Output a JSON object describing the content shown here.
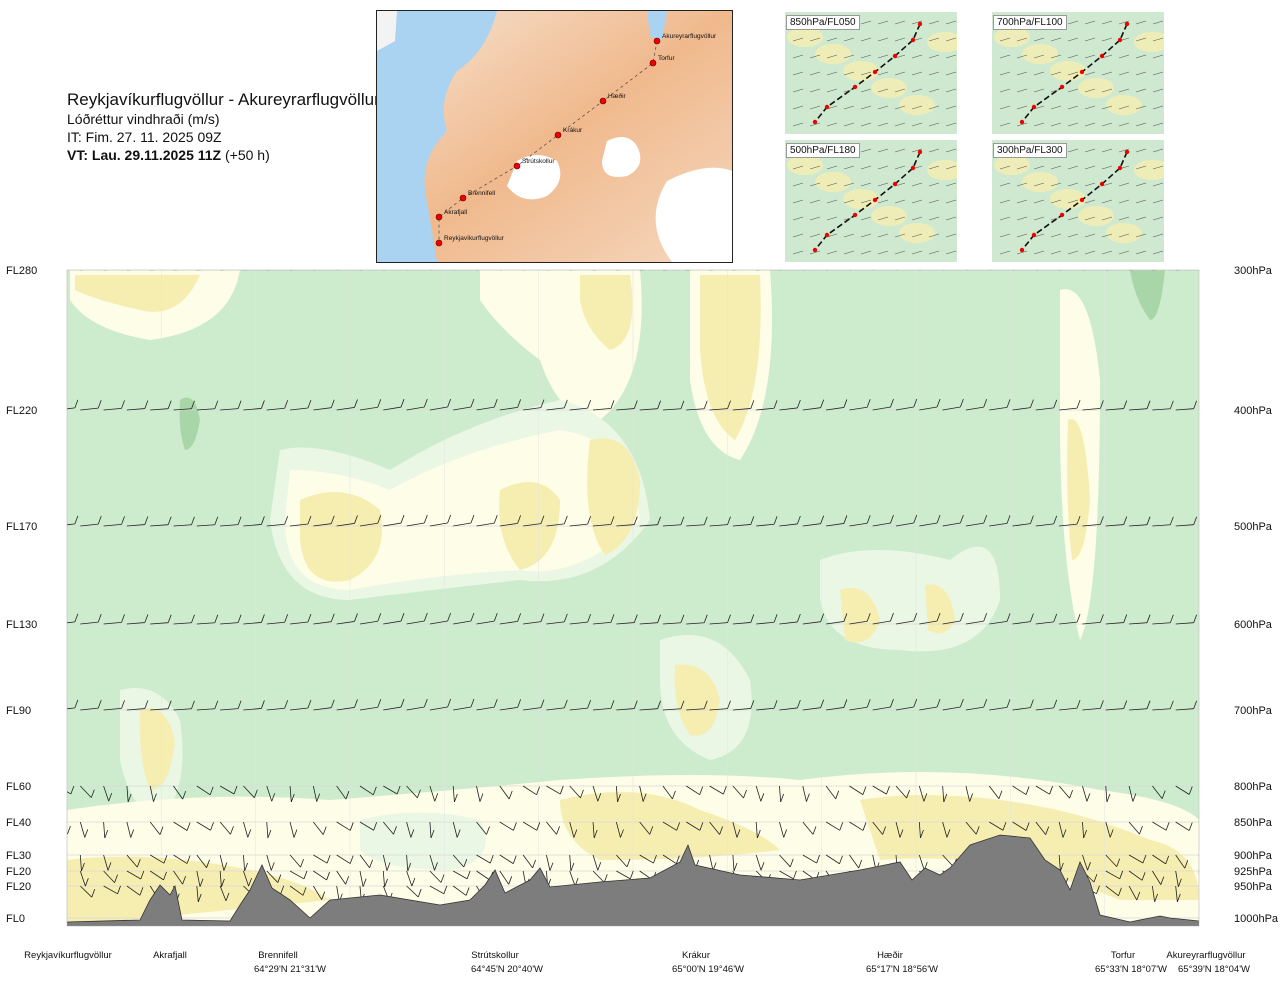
{
  "header": {
    "route": "Reykjavíkurflugvöllur - Akureyrarflugvöllur",
    "variable": "Lóðréttur vindhraði (m/s)",
    "issue_time": "IT: Fim. 27. 11. 2025 09Z",
    "valid_time_bold": "VT: Lau. 29.11.2025 11Z",
    "valid_time_offset": "(+50 h)"
  },
  "route_map": {
    "points": [
      {
        "name": "Akureyrarflugvöllur"
      },
      {
        "name": "Torfur"
      },
      {
        "name": "Hæðir"
      },
      {
        "name": "Krákur"
      },
      {
        "name": "Strútskollur"
      },
      {
        "name": "Brennifell"
      },
      {
        "name": "Akrafjall"
      },
      {
        "name": "Reykjavíkurflugvöllur"
      }
    ]
  },
  "level_maps": [
    {
      "label": "850hPa/FL050"
    },
    {
      "label": "700hPa/FL100"
    },
    {
      "label": "500hPa/FL180"
    },
    {
      "label": "300hPa/FL300"
    }
  ],
  "chart_data": {
    "type": "heatmap",
    "title": "Reykjavíkurflugvöllur - Akureyrarflugvöllur",
    "subtitle": "Lóðréttur vindhraði (m/s)",
    "flight_levels": [
      "FL280",
      "FL220",
      "FL170",
      "FL130",
      "FL90",
      "FL60",
      "FL40",
      "FL30",
      "FL20",
      "FL20",
      "FL0"
    ],
    "pressure_levels": [
      "300hPa",
      "400hPa",
      "500hPa",
      "600hPa",
      "700hPa",
      "800hPa",
      "850hPa",
      "900hPa",
      "925hPa",
      "950hPa",
      "1000hPa"
    ],
    "pressure_values_hpa": [
      300,
      400,
      500,
      600,
      700,
      800,
      850,
      900,
      925,
      950,
      1000
    ],
    "stations": [
      {
        "name": "Reykjavíkurflugvöllur",
        "coord": "",
        "fraction": 0.0
      },
      {
        "name": "Akrafjall",
        "coord": "",
        "fraction": 0.09
      },
      {
        "name": "Brennifell",
        "coord": "64°29'N 21°31'W",
        "fraction": 0.19
      },
      {
        "name": "Strútskollur",
        "coord": "64°45'N 20°40'W",
        "fraction": 0.375
      },
      {
        "name": "Krákur",
        "coord": "65°00'N 19°46'W",
        "fraction": 0.555
      },
      {
        "name": "Hæðir",
        "coord": "65°17'N 18°56'W",
        "fraction": 0.735
      },
      {
        "name": "Torfur",
        "coord": "65°33'N 18°07'W",
        "fraction": 0.95
      },
      {
        "name": "Akureyrarflugvöllur",
        "coord": "65°39'N 18°04'W",
        "fraction": 1.0
      }
    ],
    "colors": {
      "weak_up": "#cdeccd",
      "moderate_down": "#f6eeb0",
      "neutral": "#fdfde8",
      "pale": "#eaf7e4",
      "strong_up": "#a9d6a9",
      "terrain": "#7d7d7d"
    },
    "grid": true
  }
}
